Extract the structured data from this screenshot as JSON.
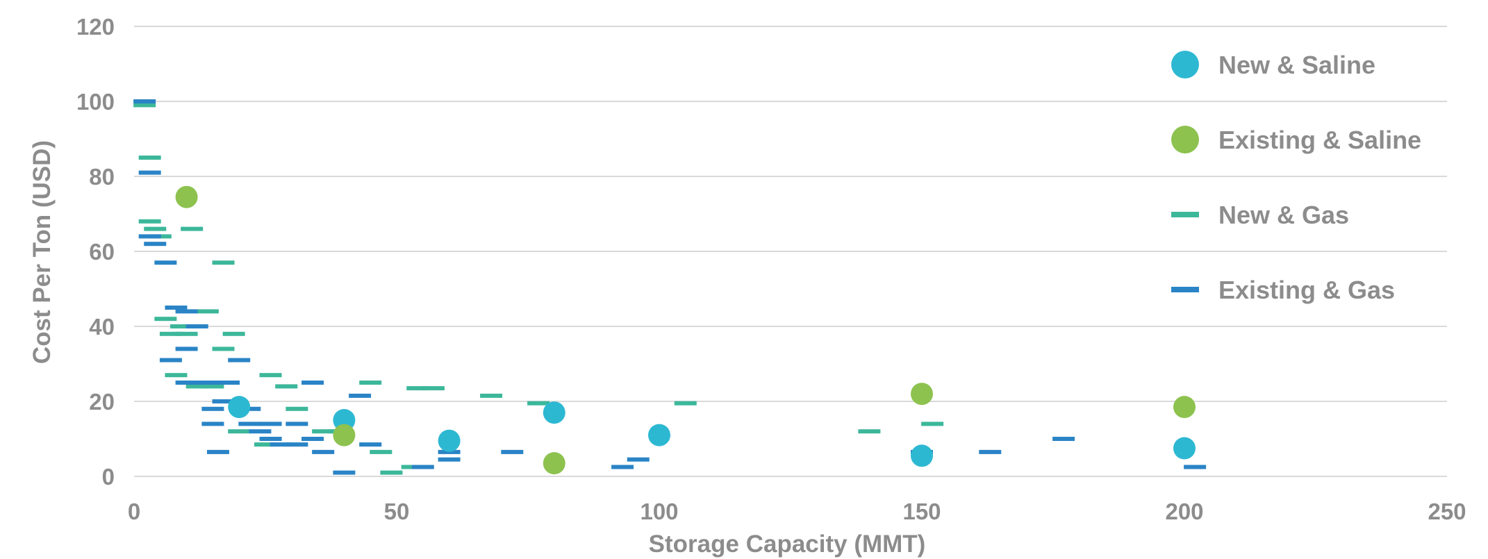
{
  "chart_data": {
    "type": "scatter",
    "title": "",
    "xlabel": "Storage Capacity (MMT)",
    "ylabel": "Cost Per Ton (USD)",
    "xlim": [
      0,
      250
    ],
    "ylim": [
      0,
      120
    ],
    "xticks": [
      0,
      50,
      100,
      150,
      200,
      250
    ],
    "yticks": [
      0,
      20,
      40,
      60,
      80,
      100,
      120
    ],
    "xtick_labels": [
      "0",
      "50",
      "100",
      "150",
      "200",
      "250"
    ],
    "ytick_labels": [
      "0",
      "20",
      "40",
      "60",
      "80",
      "100",
      "120"
    ],
    "grid": "horizontal",
    "legend_position": "right",
    "series": [
      {
        "name": "New & Saline",
        "marker": "circle",
        "color": "#2db8d2",
        "points": [
          [
            20,
            18.5
          ],
          [
            40,
            15
          ],
          [
            60,
            9.5
          ],
          [
            80,
            17
          ],
          [
            100,
            11
          ],
          [
            150,
            5.5
          ],
          [
            200,
            7.5
          ]
        ]
      },
      {
        "name": "Existing & Saline",
        "marker": "circle",
        "color": "#8dc24f",
        "points": [
          [
            10,
            74.5
          ],
          [
            40,
            11
          ],
          [
            80,
            3.5
          ],
          [
            150,
            22
          ],
          [
            200,
            18.5
          ]
        ]
      },
      {
        "name": "New & Gas",
        "marker": "dash",
        "color": "#3cb79a",
        "points": [
          [
            2,
            99
          ],
          [
            3,
            85
          ],
          [
            3,
            68
          ],
          [
            4,
            66
          ],
          [
            5,
            64
          ],
          [
            11,
            66
          ],
          [
            17,
            57
          ],
          [
            6,
            42
          ],
          [
            7,
            38
          ],
          [
            8,
            27
          ],
          [
            9,
            40
          ],
          [
            10,
            38
          ],
          [
            12,
            24
          ],
          [
            14,
            44
          ],
          [
            15,
            24
          ],
          [
            17,
            34
          ],
          [
            19,
            38
          ],
          [
            20,
            12
          ],
          [
            25,
            8.5
          ],
          [
            26,
            27
          ],
          [
            29,
            24
          ],
          [
            31,
            18
          ],
          [
            36,
            12
          ],
          [
            39,
            12
          ],
          [
            45,
            25
          ],
          [
            47,
            6.5
          ],
          [
            49,
            1
          ],
          [
            53,
            2.5
          ],
          [
            54,
            23.5
          ],
          [
            57,
            23.5
          ],
          [
            68,
            21.5
          ],
          [
            77,
            19.5
          ],
          [
            105,
            19.5
          ],
          [
            140,
            12
          ],
          [
            152,
            14
          ]
        ]
      },
      {
        "name": "Existing & Gas",
        "marker": "dash",
        "color": "#2a84c6",
        "points": [
          [
            2,
            100
          ],
          [
            3,
            81
          ],
          [
            3,
            64
          ],
          [
            4,
            62
          ],
          [
            6,
            57
          ],
          [
            8,
            45
          ],
          [
            10,
            44
          ],
          [
            7,
            31
          ],
          [
            10,
            34
          ],
          [
            10,
            25
          ],
          [
            12,
            40
          ],
          [
            14,
            25
          ],
          [
            15,
            18
          ],
          [
            15,
            14
          ],
          [
            17,
            20
          ],
          [
            16,
            6.5
          ],
          [
            18,
            25
          ],
          [
            20,
            31
          ],
          [
            22,
            18
          ],
          [
            22,
            14
          ],
          [
            24,
            12
          ],
          [
            26,
            14
          ],
          [
            26,
            10
          ],
          [
            28,
            8.5
          ],
          [
            31,
            8.5
          ],
          [
            31,
            14
          ],
          [
            34,
            25
          ],
          [
            34,
            10
          ],
          [
            36,
            6.5
          ],
          [
            40,
            1
          ],
          [
            43,
            21.5
          ],
          [
            45,
            8.5
          ],
          [
            55,
            2.5
          ],
          [
            60,
            6.5
          ],
          [
            60,
            4.5
          ],
          [
            72,
            6.5
          ],
          [
            93,
            2.5
          ],
          [
            96,
            4.5
          ],
          [
            150,
            6.5
          ],
          [
            163,
            6.5
          ],
          [
            177,
            10
          ],
          [
            202,
            2.5
          ]
        ]
      }
    ]
  }
}
